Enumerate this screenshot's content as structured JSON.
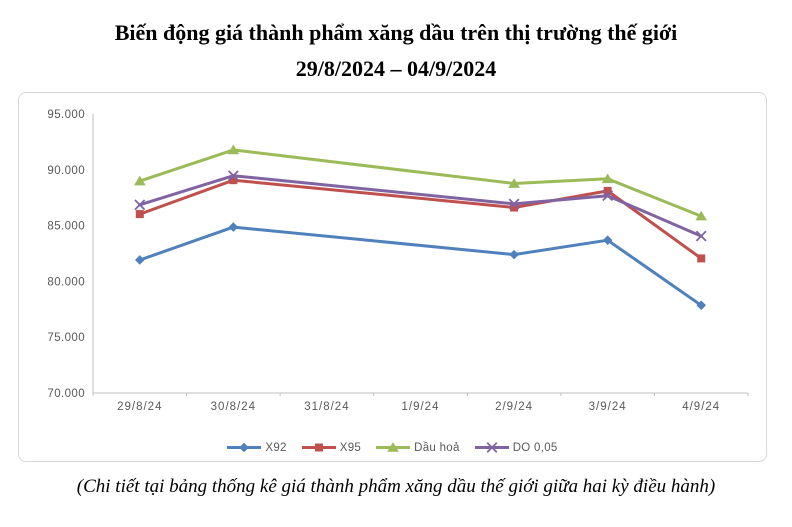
{
  "title": {
    "line1": "Biến động giá thành phẩm xăng dầu trên thị trường thế giới",
    "line2": "29/8/2024 – 04/9/2024"
  },
  "footer_note": "(Chi tiết tại bảng thống kê giá thành phẩm xăng dầu thế giới giữa hai kỳ điều hành)",
  "chart_data": {
    "type": "line",
    "title": "Biến động giá thành phẩm xăng dầu trên thị trường thế giới 29/8/2024 – 04/9/2024",
    "categories": [
      "29/8/24",
      "30/8/24",
      "31/8/24",
      "1/9/24",
      "2/9/24",
      "3/9/24",
      "4/9/24"
    ],
    "series": [
      {
        "name": "X92",
        "color": "#4F81BD",
        "marker": "diamond",
        "values": [
          81920,
          84870,
          null,
          null,
          82400,
          83690,
          77860
        ]
      },
      {
        "name": "X95",
        "color": "#C0504D",
        "marker": "square",
        "values": [
          86030,
          89070,
          null,
          null,
          86620,
          88110,
          82060
        ]
      },
      {
        "name": "Dầu hoả",
        "color": "#9BBB59",
        "marker": "triangle",
        "values": [
          88990,
          91780,
          null,
          null,
          88770,
          89190,
          85850
        ]
      },
      {
        "name": "DO 0,05",
        "color": "#8064A2",
        "marker": "x",
        "values": [
          86860,
          89470,
          null,
          null,
          86940,
          87680,
          84060
        ]
      }
    ],
    "ylim": [
      70000,
      95000
    ],
    "y_ticks": [
      {
        "value": 95000,
        "label": "95.000"
      },
      {
        "value": 90000,
        "label": "90.000"
      },
      {
        "value": 85000,
        "label": "85.000"
      },
      {
        "value": 80000,
        "label": "80.000"
      },
      {
        "value": 75000,
        "label": "75.000"
      },
      {
        "value": 70000,
        "label": "70.000"
      }
    ],
    "xlabel": "",
    "ylabel": "",
    "grid": false,
    "legend_position": "bottom",
    "axis_color": "#BFBFBF",
    "tick_label_color": "#595959",
    "line_width": 3
  }
}
